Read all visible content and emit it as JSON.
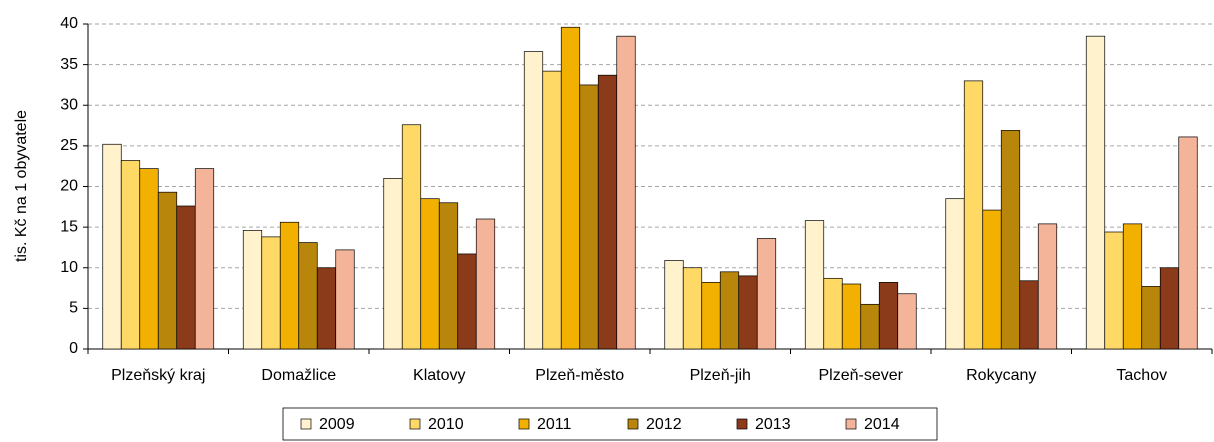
{
  "chart_data": {
    "type": "bar",
    "y_label": "tis. Kč na 1 obyvatele",
    "categories": [
      "Plzeňský kraj",
      "Domažlice",
      "Klatovy",
      "Plzeň-město",
      "Plzeň-jih",
      "Plzeň-sever",
      "Rokycany",
      "Tachov"
    ],
    "series": [
      {
        "name": "2009",
        "color": "#fff2cc",
        "values": [
          25.2,
          14.6,
          21.0,
          36.6,
          10.9,
          15.8,
          18.5,
          38.5
        ]
      },
      {
        "name": "2010",
        "color": "#ffd966",
        "values": [
          23.2,
          13.8,
          27.6,
          34.2,
          10.0,
          8.7,
          33.0,
          14.4
        ]
      },
      {
        "name": "2011",
        "color": "#f2b000",
        "values": [
          22.2,
          15.6,
          18.5,
          39.6,
          8.2,
          8.0,
          17.1,
          15.4
        ]
      },
      {
        "name": "2012",
        "color": "#b8860b",
        "values": [
          19.3,
          13.1,
          18.0,
          32.5,
          9.5,
          5.5,
          26.9,
          7.7
        ]
      },
      {
        "name": "2013",
        "color": "#8b3a1a",
        "values": [
          17.6,
          10.0,
          11.7,
          33.7,
          9.0,
          8.2,
          8.4,
          10.0
        ]
      },
      {
        "name": "2014",
        "color": "#f4b49a",
        "values": [
          22.2,
          12.2,
          16.0,
          38.5,
          13.6,
          6.8,
          15.4,
          26.1
        ]
      }
    ],
    "ylim": [
      0,
      40
    ],
    "yticks": [
      0,
      5,
      10,
      15,
      20,
      25,
      30,
      35,
      40
    ],
    "grid": true,
    "legend": "bottom"
  }
}
